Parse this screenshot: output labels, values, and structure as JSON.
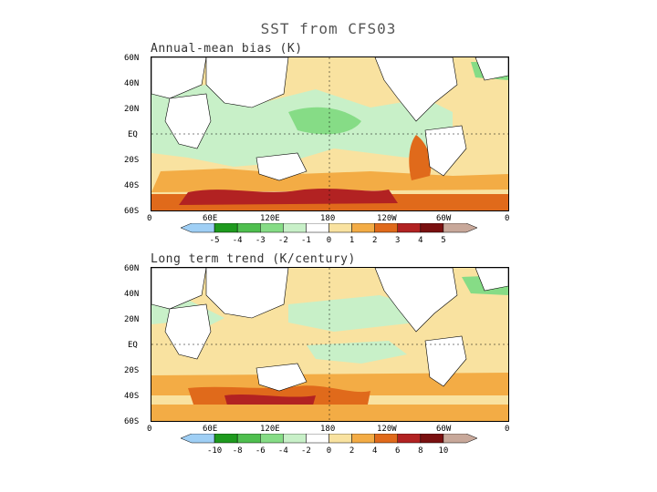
{
  "title": "SST from CFS03",
  "panels": [
    {
      "title": "Annual-mean bias (K)",
      "colorbar_labels": [
        "-5",
        "-4",
        "-3",
        "-2",
        "-1",
        "0",
        "1",
        "2",
        "3",
        "4",
        "5"
      ],
      "colorbar_colors": [
        "#9fcff5",
        "#1e9a1e",
        "#4fbf4f",
        "#86dc86",
        "#c8f0c8",
        "#ffffff",
        "#f9e2a0",
        "#f3ac45",
        "#e06a1b",
        "#b22222",
        "#7a1010",
        "#c8a89a"
      ]
    },
    {
      "title": "Long term trend (K/century)",
      "colorbar_labels": [
        "-10",
        "-8",
        "-6",
        "-4",
        "-2",
        "0",
        "2",
        "4",
        "6",
        "8",
        "10"
      ],
      "colorbar_colors": [
        "#9fcff5",
        "#1e9a1e",
        "#4fbf4f",
        "#86dc86",
        "#c8f0c8",
        "#ffffff",
        "#f9e2a0",
        "#f3ac45",
        "#e06a1b",
        "#b22222",
        "#7a1010",
        "#c8a89a"
      ]
    }
  ],
  "lat_labels": [
    "60N",
    "40N",
    "20N",
    "EQ",
    "20S",
    "40S",
    "60S"
  ],
  "lon_labels": [
    "0",
    "60E",
    "120E",
    "180",
    "120W",
    "60W",
    "0"
  ]
}
